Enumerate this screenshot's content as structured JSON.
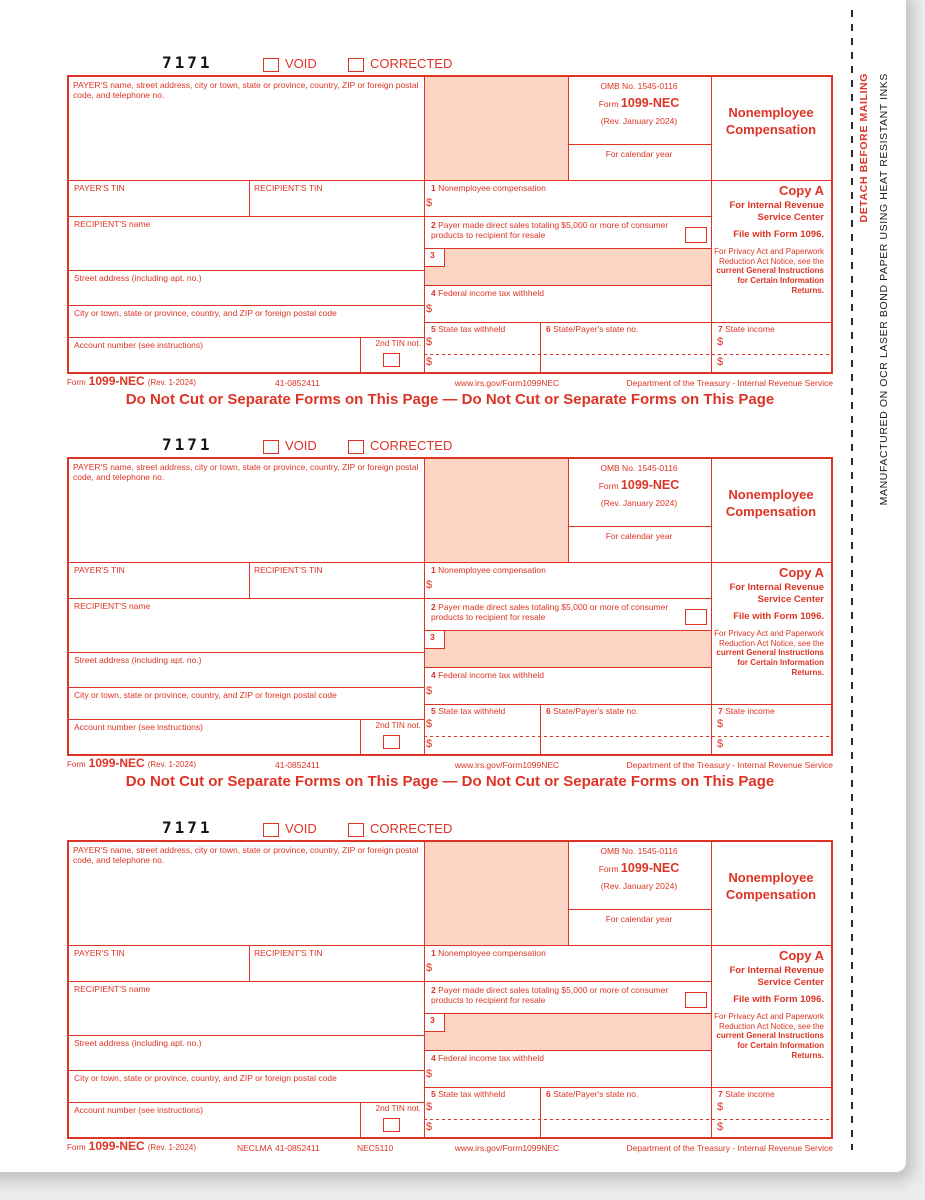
{
  "colors": {
    "red": "#dd3425",
    "shade": "#fcd5c4",
    "paper": "#ffffff",
    "background": "#ebecec",
    "black_ink": "#1c1c1c"
  },
  "side": {
    "detach": "DETACH BEFORE MAILING",
    "manufactured": "MANUFACTURED ON OCR LASER BOND PAPER USING HEAT RESISTANT INKS"
  },
  "form": {
    "ocr_code": "7171",
    "void_label": "VOID",
    "corrected_label": "CORRECTED",
    "payer_block_label": "PAYER'S name, street address, city or town, state or province, country, ZIP or foreign postal code, and telephone no.",
    "omb_number": "OMB No. 1545-0116",
    "form_word": "Form",
    "form_number": "1099-NEC",
    "revision": "(Rev. January 2024)",
    "calendar_year_label": "For calendar year",
    "title_line1": "Nonemployee",
    "title_line2": "Compensation",
    "payer_tin_label": "PAYER'S TIN",
    "recipient_tin_label": "RECIPIENT'S TIN",
    "box1_num": "1",
    "box1_label": "Nonemployee compensation",
    "recipient_name_label": "RECIPIENT'S name",
    "box2_num": "2",
    "box2_label": "Payer made direct sales totaling $5,000 or more of consumer products to recipient for resale",
    "box3_num": "3",
    "street_label": "Street address (including apt. no.)",
    "box4_num": "4",
    "box4_label": "Federal income tax withheld",
    "city_label": "City or town, state or province, country, and ZIP or foreign postal code",
    "account_label": "Account number (see instructions)",
    "tin_not_label": "2nd TIN not.",
    "box5_num": "5",
    "box5_label": "State tax withheld",
    "box6_num": "6",
    "box6_label": "State/Payer's state no.",
    "box7_num": "7",
    "box7_label": "State income",
    "dollar": "$",
    "copy_a": "Copy A",
    "copy_a_line1": "For Internal Revenue Service Center",
    "copy_a_line2": "File with Form 1096.",
    "privacy_normal": "For Privacy Act and Paperwork Reduction Act Notice, see the ",
    "privacy_bold": "current General Instructions for Certain Information Returns."
  },
  "footers": [
    {
      "form_word": "Form",
      "form_number": "1099-NEC",
      "revision": "(Rev. 1-2024)",
      "code_left": "",
      "plate": "41-0852411",
      "code_right": "",
      "url": "www.irs.gov/Form1099NEC",
      "dept": "Department of the Treasury - Internal Revenue Service",
      "separator": "Do Not Cut or Separate Forms on This Page — Do Not Cut or Separate Forms on This Page"
    },
    {
      "form_word": "Form",
      "form_number": "1099-NEC",
      "revision": "(Rev. 1-2024)",
      "code_left": "",
      "plate": "41-0852411",
      "code_right": "",
      "url": "www.irs.gov/Form1099NEC",
      "dept": "Department of the Treasury - Internal Revenue Service",
      "separator": "Do Not Cut or Separate Forms on This Page — Do Not Cut or Separate Forms on This Page"
    },
    {
      "form_word": "Form",
      "form_number": "1099-NEC",
      "revision": "(Rev. 1-2024)",
      "code_left": "NECLMA",
      "plate": "41-0852411",
      "code_right": "NEC5110",
      "url": "www.irs.gov/Form1099NEC",
      "dept": "Department of the Treasury - Internal Revenue Service",
      "separator": ""
    }
  ]
}
